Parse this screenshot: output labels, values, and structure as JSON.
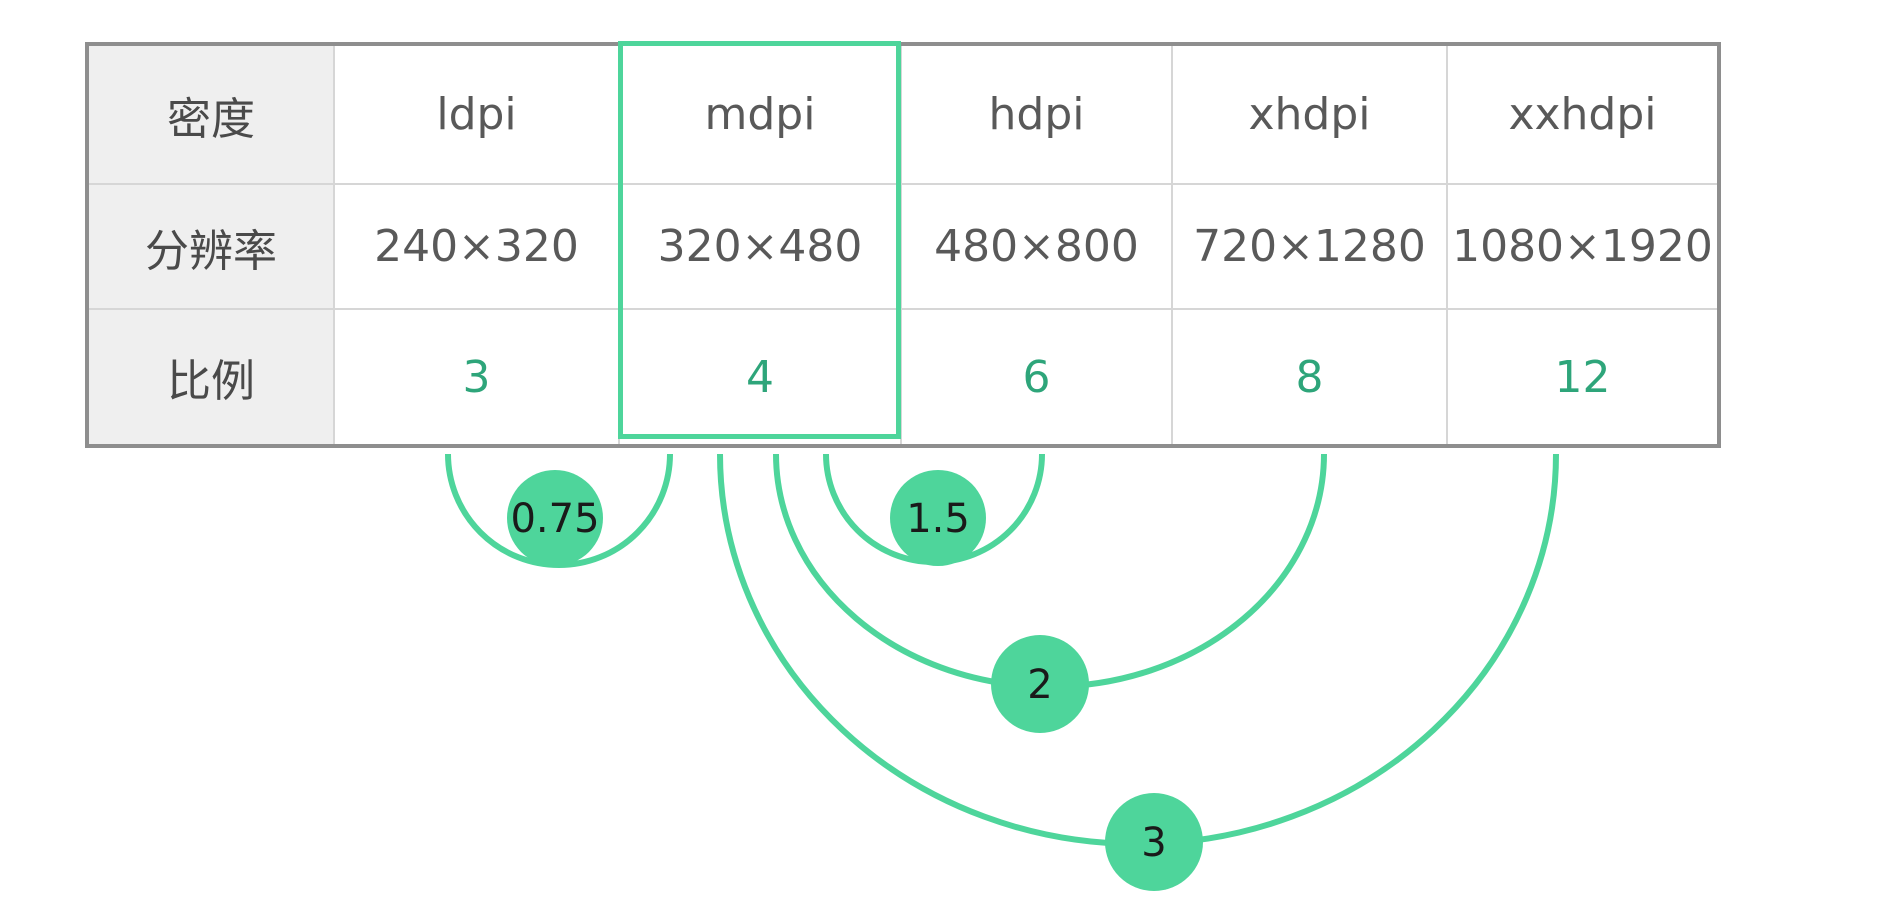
{
  "table": {
    "rows": [
      {
        "label": "密度",
        "cells": [
          "ldpi",
          "mdpi",
          "hdpi",
          "xhdpi",
          "xxhdpi"
        ],
        "kind": "text"
      },
      {
        "label": "分辨率",
        "cells": [
          "240×320",
          "320×480",
          "480×800",
          "720×1280",
          "1080×1920"
        ],
        "kind": "text"
      },
      {
        "label": "比例",
        "cells": [
          "3",
          "4",
          "6",
          "8",
          "12"
        ],
        "kind": "ratio"
      }
    ]
  },
  "highlight": {
    "column": "mdpi"
  },
  "ratios": [
    {
      "from": "ldpi",
      "to": "mdpi",
      "label": "0.75"
    },
    {
      "from": "mdpi",
      "to": "hdpi",
      "label": "1.5"
    },
    {
      "from": "mdpi",
      "to": "xhdpi",
      "label": "2"
    },
    {
      "from": "mdpi",
      "to": "xxhdpi",
      "label": "3"
    }
  ],
  "colors": {
    "accent": "#4ed59b",
    "ratio_text": "#2ea57a",
    "header_bg": "#efefef",
    "outer_border": "#8e8e8e",
    "inner_border": "#d6d6d6"
  }
}
